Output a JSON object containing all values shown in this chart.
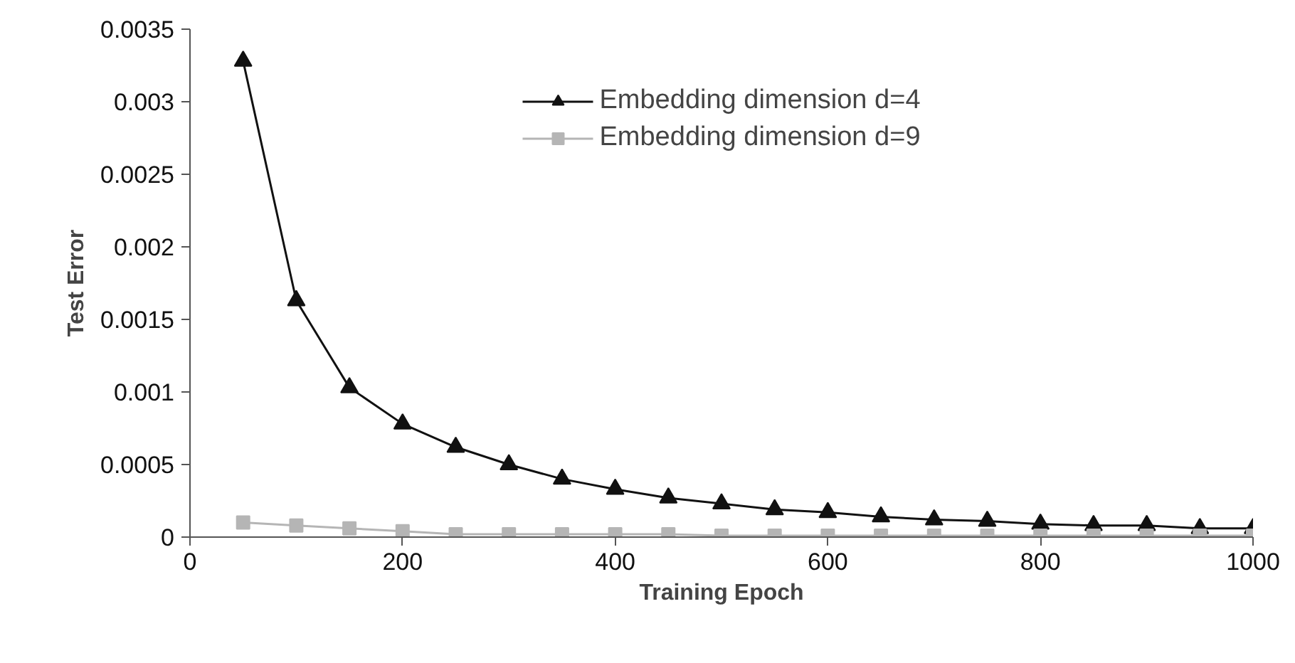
{
  "chart_data": {
    "type": "line",
    "xlabel": "Training Epoch",
    "ylabel": "Test Error",
    "x": [
      50,
      100,
      150,
      200,
      250,
      300,
      350,
      400,
      450,
      500,
      550,
      600,
      650,
      700,
      750,
      800,
      850,
      900,
      950,
      1000
    ],
    "series": [
      {
        "name": "Embedding dimension d=4",
        "color": "#111111",
        "marker": "triangle",
        "values": [
          0.00328,
          0.00163,
          0.00103,
          0.00078,
          0.00062,
          0.0005,
          0.0004,
          0.00033,
          0.00027,
          0.00023,
          0.00019,
          0.00017,
          0.00014,
          0.00012,
          0.00011,
          9e-05,
          8e-05,
          8e-05,
          6e-05,
          6e-05
        ]
      },
      {
        "name": "Embedding dimension d=9",
        "color": "#b5b5b5",
        "marker": "square",
        "values": [
          0.0001,
          8e-05,
          6e-05,
          4e-05,
          2e-05,
          2e-05,
          2e-05,
          2e-05,
          2e-05,
          1e-05,
          1e-05,
          1e-05,
          1e-05,
          1e-05,
          1e-05,
          1e-05,
          1e-05,
          1e-05,
          1e-05,
          1e-05
        ]
      }
    ],
    "xlim": [
      0,
      1000
    ],
    "xticks": [
      0,
      200,
      400,
      600,
      800,
      1000
    ],
    "ylim": [
      0,
      0.0035
    ],
    "yticks": [
      0,
      0.0005,
      0.001,
      0.0015,
      0.002,
      0.0025,
      0.003,
      0.0035
    ],
    "grid": false,
    "legend": "top",
    "line_style": "solid"
  }
}
